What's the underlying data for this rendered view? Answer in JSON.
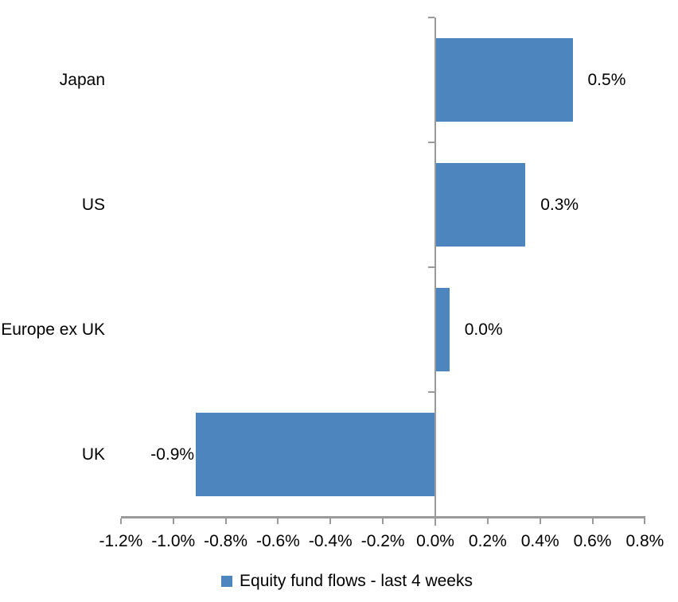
{
  "chart_data": {
    "type": "bar",
    "orientation": "horizontal",
    "title": "",
    "categories": [
      "Japan",
      "US",
      "Europe ex UK",
      "UK"
    ],
    "series": [
      {
        "name": "Equity fund flows - last 4 weeks",
        "values": [
          0.52,
          0.34,
          0.05,
          -0.91
        ],
        "data_labels": [
          "0.5%",
          "0.3%",
          "0.0%",
          "-0.9%"
        ],
        "color": "#4D86BE"
      }
    ],
    "xlabel": "",
    "ylabel": "",
    "xlim": [
      -1.2,
      0.8
    ],
    "x_tick_values": [
      -1.2,
      -1.0,
      -0.8,
      -0.6,
      -0.4,
      -0.2,
      0.0,
      0.2,
      0.4,
      0.6,
      0.8
    ],
    "x_tick_labels": [
      "-1.2%",
      "-1.0%",
      "-0.8%",
      "-0.6%",
      "-0.4%",
      "-0.2%",
      "0.0%",
      "0.2%",
      "0.4%",
      "0.6%",
      "0.8%"
    ],
    "grid": false,
    "legend_position": "bottom",
    "axis_color": "#9A9A9A",
    "text_color": "#000000",
    "background": "#FFFFFF"
  }
}
